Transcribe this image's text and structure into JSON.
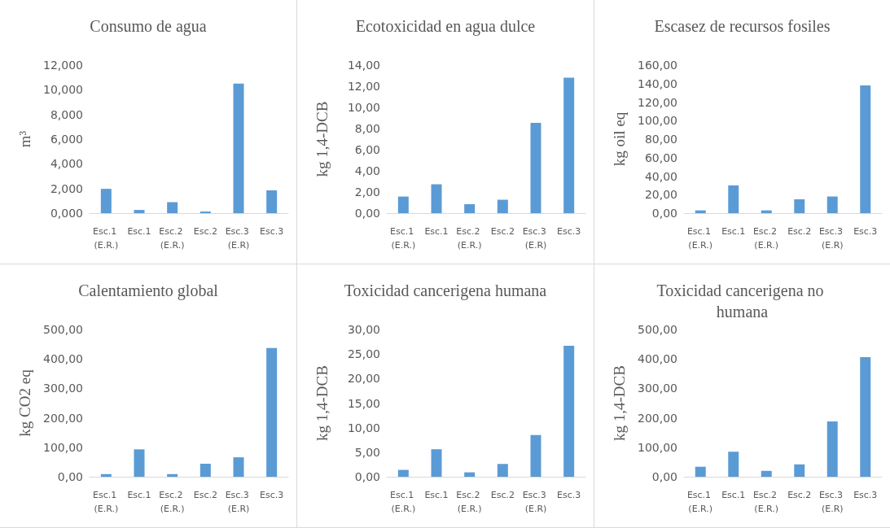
{
  "chart_data": [
    {
      "type": "bar",
      "title": "Consumo de agua",
      "ylabel": "m³",
      "categories": [
        "Esc.1 (E.R.)",
        "Esc.1",
        "Esc.2 (E.R.)",
        "Esc.2",
        "Esc.3 (E.R)",
        "Esc.3"
      ],
      "values": [
        1.97,
        0.26,
        0.89,
        0.14,
        10.5,
        1.85
      ],
      "color": "#5b9bd5",
      "ylim": [
        0,
        12
      ],
      "yticks": [
        {
          "value": 0,
          "label": "0,000"
        },
        {
          "value": 2,
          "label": "2,000"
        },
        {
          "value": 4,
          "label": "4,000"
        },
        {
          "value": 6,
          "label": "6,000"
        },
        {
          "value": 8,
          "label": "8,000"
        },
        {
          "value": 10,
          "label": "10,000"
        },
        {
          "value": 12,
          "label": "12,000"
        }
      ]
    },
    {
      "type": "bar",
      "title": "Ecotoxicidad en agua dulce",
      "ylabel": "kg 1,4-DCB",
      "categories": [
        "Esc.1 (E.R.)",
        "Esc.1",
        "Esc.2 (E.R.)",
        "Esc.2",
        "Esc.3 (E.R)",
        "Esc.3"
      ],
      "values": [
        1.57,
        2.73,
        0.85,
        1.26,
        8.53,
        12.8
      ],
      "color": "#5b9bd5",
      "ylim": [
        0,
        14
      ],
      "yticks": [
        {
          "value": 0,
          "label": "0,00"
        },
        {
          "value": 2,
          "label": "2,00"
        },
        {
          "value": 4,
          "label": "4,00"
        },
        {
          "value": 6,
          "label": "6,00"
        },
        {
          "value": 8,
          "label": "8,00"
        },
        {
          "value": 10,
          "label": "10,00"
        },
        {
          "value": 12,
          "label": "12,00"
        },
        {
          "value": 14,
          "label": "14,00"
        }
      ]
    },
    {
      "type": "bar",
      "title": "Escasez de recursos fosiles",
      "ylabel": "kg oil eq",
      "categories": [
        "Esc.1 (E.R.)",
        "Esc.1",
        "Esc.2 (E.R.)",
        "Esc.2",
        "Esc.3 (E.R)",
        "Esc.3"
      ],
      "values": [
        3,
        30,
        3,
        15,
        18,
        138
      ],
      "color": "#5b9bd5",
      "ylim": [
        0,
        160
      ],
      "yticks": [
        {
          "value": 0,
          "label": "0,00"
        },
        {
          "value": 20,
          "label": "20,00"
        },
        {
          "value": 40,
          "label": "40,00"
        },
        {
          "value": 60,
          "label": "60,00"
        },
        {
          "value": 80,
          "label": "80,00"
        },
        {
          "value": 100,
          "label": "100,00"
        },
        {
          "value": 120,
          "label": "120,00"
        },
        {
          "value": 140,
          "label": "140,00"
        },
        {
          "value": 160,
          "label": "160,00"
        }
      ]
    },
    {
      "type": "bar",
      "title": "Calentamiento global",
      "ylabel": "kg CO2 eq",
      "categories": [
        "Esc.1 (E.R.)",
        "Esc.1",
        "Esc.2 (E.R.)",
        "Esc.2",
        "Esc.3 (E.R)",
        "Esc.3"
      ],
      "values": [
        9,
        93,
        9,
        44,
        66,
        437
      ],
      "color": "#5b9bd5",
      "ylim": [
        0,
        500
      ],
      "yticks": [
        {
          "value": 0,
          "label": "0,00"
        },
        {
          "value": 100,
          "label": "100,00"
        },
        {
          "value": 200,
          "label": "200,00"
        },
        {
          "value": 300,
          "label": "300,00"
        },
        {
          "value": 400,
          "label": "400,00"
        },
        {
          "value": 500,
          "label": "500,00"
        }
      ]
    },
    {
      "type": "bar",
      "title": "Toxicidad cancerigena humana",
      "ylabel": "kg 1,4-DCB",
      "categories": [
        "Esc.1 (E.R.)",
        "Esc.1",
        "Esc.2 (E.R.)",
        "Esc.2",
        "Esc.3 (E.R)",
        "Esc.3"
      ],
      "values": [
        1.4,
        5.6,
        0.9,
        2.6,
        8.5,
        26.7
      ],
      "color": "#5b9bd5",
      "ylim": [
        0,
        30
      ],
      "yticks": [
        {
          "value": 0,
          "label": "0,00"
        },
        {
          "value": 5,
          "label": "5,00"
        },
        {
          "value": 10,
          "label": "10,00"
        },
        {
          "value": 15,
          "label": "15,00"
        },
        {
          "value": 20,
          "label": "20,00"
        },
        {
          "value": 25,
          "label": "25,00"
        },
        {
          "value": 30,
          "label": "30,00"
        }
      ]
    },
    {
      "type": "bar",
      "title": "Toxicidad cancerigena no humana",
      "ylabel": "kg 1,4-DCB",
      "categories": [
        "Esc.1 (E.R.)",
        "Esc.1",
        "Esc.2 (E.R.)",
        "Esc.2",
        "Esc.3 (E.R)",
        "Esc.3"
      ],
      "values": [
        34,
        85,
        20,
        42,
        188,
        406
      ],
      "color": "#5b9bd5",
      "ylim": [
        0,
        500
      ],
      "yticks": [
        {
          "value": 0,
          "label": "0,00"
        },
        {
          "value": 100,
          "label": "100,00"
        },
        {
          "value": 200,
          "label": "200,00"
        },
        {
          "value": 300,
          "label": "300,00"
        },
        {
          "value": 400,
          "label": "400,00"
        },
        {
          "value": 500,
          "label": "500,00"
        }
      ]
    }
  ]
}
